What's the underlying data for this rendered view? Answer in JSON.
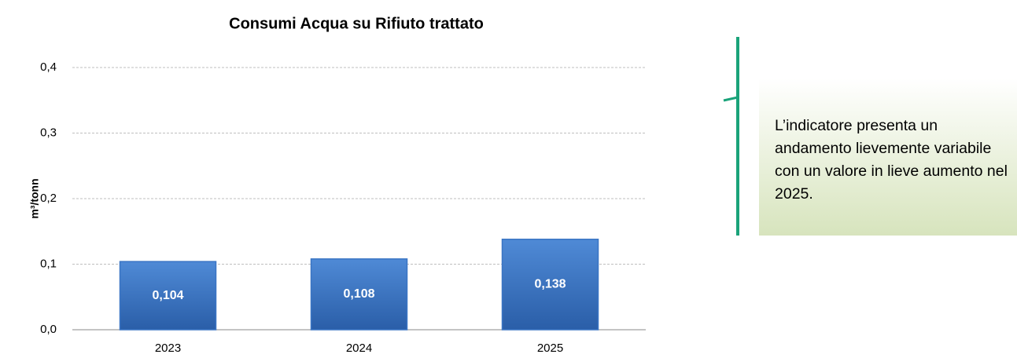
{
  "chart_data": {
    "type": "bar",
    "title": "Consumi Acqua su Rifiuto trattato",
    "y_label": "m³/tonn",
    "categories": [
      "2023",
      "2024",
      "2025"
    ],
    "values": [
      0.104,
      0.108,
      0.138
    ],
    "value_labels": [
      "0,104",
      "0,108",
      "0,138"
    ],
    "color": "#3a75c4",
    "ylim": [
      0,
      0.4
    ],
    "yticks": [
      {
        "value": 0,
        "label": "0,0"
      },
      {
        "value": 0.1,
        "label": "0,1"
      },
      {
        "value": 0.2,
        "label": "0,2"
      },
      {
        "value": 0.3,
        "label": "0,3"
      },
      {
        "value": 0.4,
        "label": "0,4"
      }
    ],
    "grid": true
  },
  "callout": {
    "text": "L’indicatore presenta un andamento lievemente variabile con un valore in lieve aumento nel 2025."
  }
}
